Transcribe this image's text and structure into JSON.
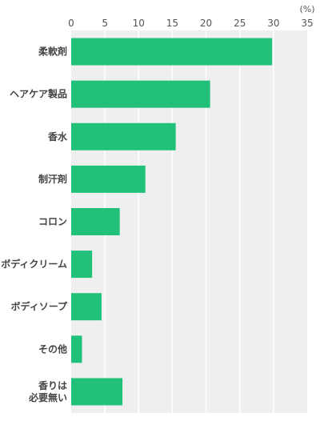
{
  "chart_data": {
    "type": "bar",
    "orientation": "horizontal",
    "unit": "(%)",
    "categories": [
      "柔軟剤",
      "ヘアケア製品",
      "香水",
      "制汗剤",
      "コロン",
      "ボディクリーム",
      "ボディソープ",
      "その他",
      "香りは\n必要無い"
    ],
    "values": [
      29.8,
      20.6,
      15.5,
      11.0,
      7.2,
      3.1,
      4.5,
      1.6,
      7.6
    ],
    "xlim": [
      0,
      35
    ],
    "xticks": [
      0,
      5,
      10,
      15,
      20,
      25,
      30,
      35
    ],
    "grid": true,
    "bar_color": "#22c17a",
    "plot_bg": "#efefef",
    "grid_color": "#ffffff"
  }
}
